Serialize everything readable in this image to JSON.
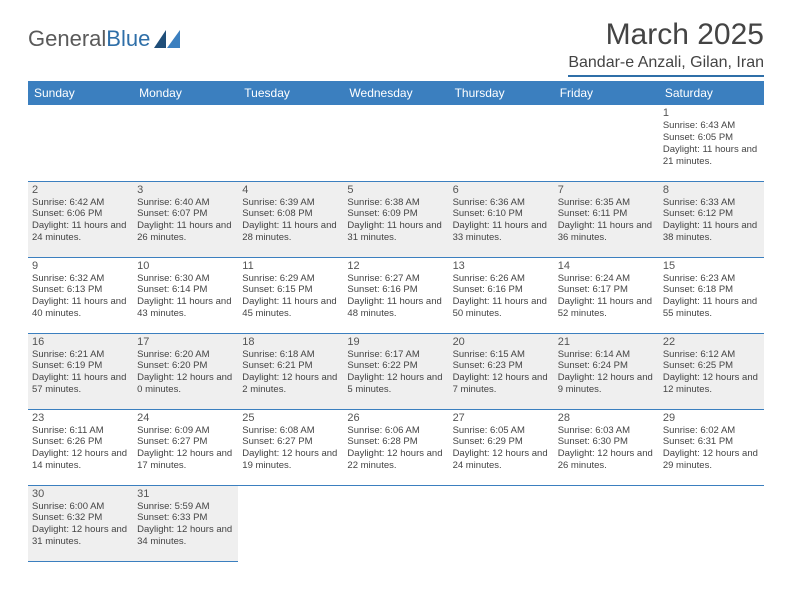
{
  "logo": {
    "text1": "General",
    "text2": "Blue"
  },
  "title": "March 2025",
  "location": "Bandar-e Anzali, Gilan, Iran",
  "colors": {
    "header_bg": "#3b7fbf",
    "header_text": "#ffffff",
    "border": "#3b7fbf",
    "logo_accent": "#2f6fa8"
  },
  "weekdays": [
    "Sunday",
    "Monday",
    "Tuesday",
    "Wednesday",
    "Thursday",
    "Friday",
    "Saturday"
  ],
  "weeks": [
    [
      null,
      null,
      null,
      null,
      null,
      null,
      {
        "n": "1",
        "sr": "Sunrise: 6:43 AM",
        "ss": "Sunset: 6:05 PM",
        "dl": "Daylight: 11 hours and 21 minutes."
      }
    ],
    [
      {
        "n": "2",
        "sr": "Sunrise: 6:42 AM",
        "ss": "Sunset: 6:06 PM",
        "dl": "Daylight: 11 hours and 24 minutes."
      },
      {
        "n": "3",
        "sr": "Sunrise: 6:40 AM",
        "ss": "Sunset: 6:07 PM",
        "dl": "Daylight: 11 hours and 26 minutes."
      },
      {
        "n": "4",
        "sr": "Sunrise: 6:39 AM",
        "ss": "Sunset: 6:08 PM",
        "dl": "Daylight: 11 hours and 28 minutes."
      },
      {
        "n": "5",
        "sr": "Sunrise: 6:38 AM",
        "ss": "Sunset: 6:09 PM",
        "dl": "Daylight: 11 hours and 31 minutes."
      },
      {
        "n": "6",
        "sr": "Sunrise: 6:36 AM",
        "ss": "Sunset: 6:10 PM",
        "dl": "Daylight: 11 hours and 33 minutes."
      },
      {
        "n": "7",
        "sr": "Sunrise: 6:35 AM",
        "ss": "Sunset: 6:11 PM",
        "dl": "Daylight: 11 hours and 36 minutes."
      },
      {
        "n": "8",
        "sr": "Sunrise: 6:33 AM",
        "ss": "Sunset: 6:12 PM",
        "dl": "Daylight: 11 hours and 38 minutes."
      }
    ],
    [
      {
        "n": "9",
        "sr": "Sunrise: 6:32 AM",
        "ss": "Sunset: 6:13 PM",
        "dl": "Daylight: 11 hours and 40 minutes."
      },
      {
        "n": "10",
        "sr": "Sunrise: 6:30 AM",
        "ss": "Sunset: 6:14 PM",
        "dl": "Daylight: 11 hours and 43 minutes."
      },
      {
        "n": "11",
        "sr": "Sunrise: 6:29 AM",
        "ss": "Sunset: 6:15 PM",
        "dl": "Daylight: 11 hours and 45 minutes."
      },
      {
        "n": "12",
        "sr": "Sunrise: 6:27 AM",
        "ss": "Sunset: 6:16 PM",
        "dl": "Daylight: 11 hours and 48 minutes."
      },
      {
        "n": "13",
        "sr": "Sunrise: 6:26 AM",
        "ss": "Sunset: 6:16 PM",
        "dl": "Daylight: 11 hours and 50 minutes."
      },
      {
        "n": "14",
        "sr": "Sunrise: 6:24 AM",
        "ss": "Sunset: 6:17 PM",
        "dl": "Daylight: 11 hours and 52 minutes."
      },
      {
        "n": "15",
        "sr": "Sunrise: 6:23 AM",
        "ss": "Sunset: 6:18 PM",
        "dl": "Daylight: 11 hours and 55 minutes."
      }
    ],
    [
      {
        "n": "16",
        "sr": "Sunrise: 6:21 AM",
        "ss": "Sunset: 6:19 PM",
        "dl": "Daylight: 11 hours and 57 minutes."
      },
      {
        "n": "17",
        "sr": "Sunrise: 6:20 AM",
        "ss": "Sunset: 6:20 PM",
        "dl": "Daylight: 12 hours and 0 minutes."
      },
      {
        "n": "18",
        "sr": "Sunrise: 6:18 AM",
        "ss": "Sunset: 6:21 PM",
        "dl": "Daylight: 12 hours and 2 minutes."
      },
      {
        "n": "19",
        "sr": "Sunrise: 6:17 AM",
        "ss": "Sunset: 6:22 PM",
        "dl": "Daylight: 12 hours and 5 minutes."
      },
      {
        "n": "20",
        "sr": "Sunrise: 6:15 AM",
        "ss": "Sunset: 6:23 PM",
        "dl": "Daylight: 12 hours and 7 minutes."
      },
      {
        "n": "21",
        "sr": "Sunrise: 6:14 AM",
        "ss": "Sunset: 6:24 PM",
        "dl": "Daylight: 12 hours and 9 minutes."
      },
      {
        "n": "22",
        "sr": "Sunrise: 6:12 AM",
        "ss": "Sunset: 6:25 PM",
        "dl": "Daylight: 12 hours and 12 minutes."
      }
    ],
    [
      {
        "n": "23",
        "sr": "Sunrise: 6:11 AM",
        "ss": "Sunset: 6:26 PM",
        "dl": "Daylight: 12 hours and 14 minutes."
      },
      {
        "n": "24",
        "sr": "Sunrise: 6:09 AM",
        "ss": "Sunset: 6:27 PM",
        "dl": "Daylight: 12 hours and 17 minutes."
      },
      {
        "n": "25",
        "sr": "Sunrise: 6:08 AM",
        "ss": "Sunset: 6:27 PM",
        "dl": "Daylight: 12 hours and 19 minutes."
      },
      {
        "n": "26",
        "sr": "Sunrise: 6:06 AM",
        "ss": "Sunset: 6:28 PM",
        "dl": "Daylight: 12 hours and 22 minutes."
      },
      {
        "n": "27",
        "sr": "Sunrise: 6:05 AM",
        "ss": "Sunset: 6:29 PM",
        "dl": "Daylight: 12 hours and 24 minutes."
      },
      {
        "n": "28",
        "sr": "Sunrise: 6:03 AM",
        "ss": "Sunset: 6:30 PM",
        "dl": "Daylight: 12 hours and 26 minutes."
      },
      {
        "n": "29",
        "sr": "Sunrise: 6:02 AM",
        "ss": "Sunset: 6:31 PM",
        "dl": "Daylight: 12 hours and 29 minutes."
      }
    ],
    [
      {
        "n": "30",
        "sr": "Sunrise: 6:00 AM",
        "ss": "Sunset: 6:32 PM",
        "dl": "Daylight: 12 hours and 31 minutes."
      },
      {
        "n": "31",
        "sr": "Sunrise: 5:59 AM",
        "ss": "Sunset: 6:33 PM",
        "dl": "Daylight: 12 hours and 34 minutes."
      },
      null,
      null,
      null,
      null,
      null
    ]
  ]
}
